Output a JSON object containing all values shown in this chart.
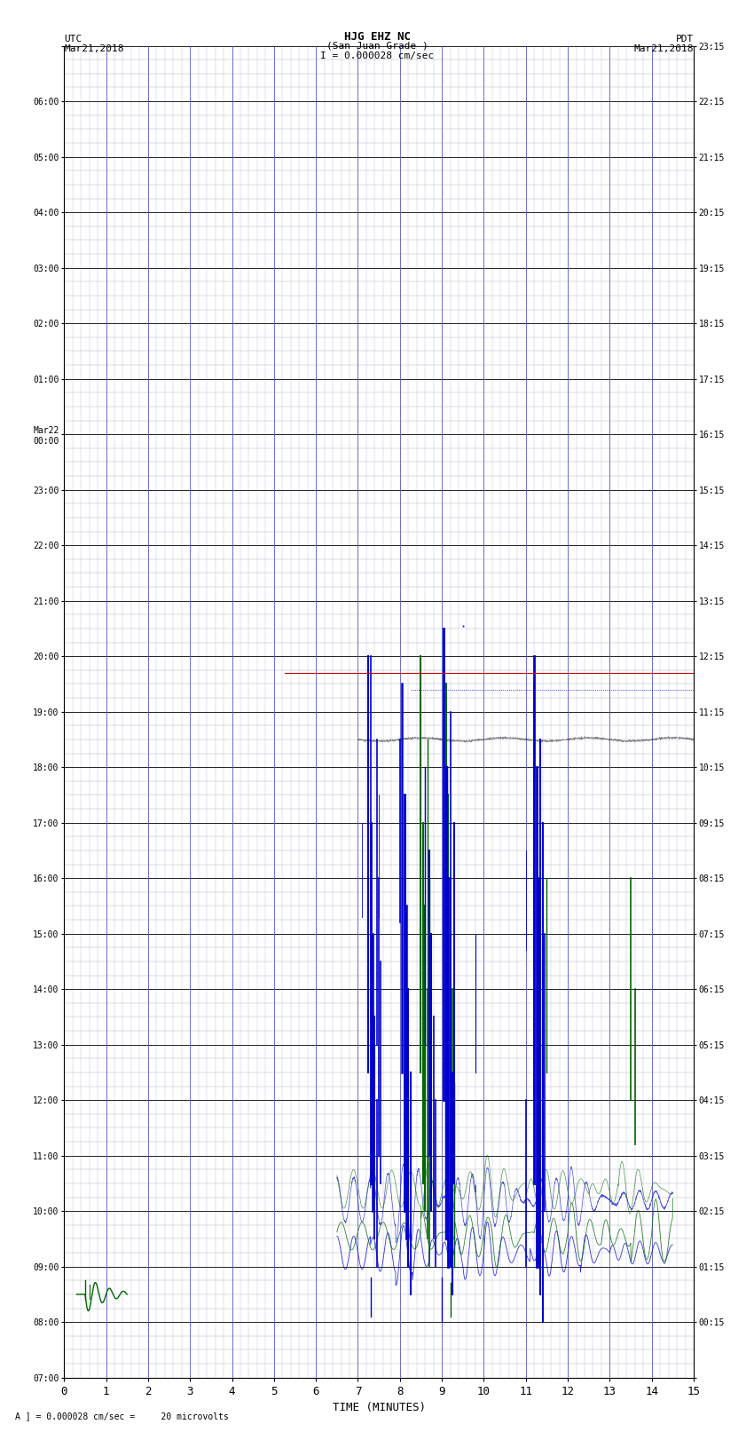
{
  "title_line1": "HJG EHZ NC",
  "title_line2": "(San Juan Grade )",
  "title_line3": "I = 0.000028 cm/sec",
  "left_top_label": "UTC\nMar21,2018",
  "right_top_label": "PDT\nMar21,2018",
  "xlabel": "TIME (MINUTES)",
  "bottom_note": "A ] = 0.000028 cm/sec =     20 microvolts",
  "left_yticks": [
    "07:00",
    "08:00",
    "09:00",
    "10:00",
    "11:00",
    "12:00",
    "13:00",
    "14:00",
    "15:00",
    "16:00",
    "17:00",
    "18:00",
    "19:00",
    "20:00",
    "21:00",
    "22:00",
    "23:00",
    "Mar22\n00:00",
    "01:00",
    "02:00",
    "03:00",
    "04:00",
    "05:00",
    "06:00"
  ],
  "right_yticks": [
    "00:15",
    "01:15",
    "02:15",
    "03:15",
    "04:15",
    "05:15",
    "06:15",
    "07:15",
    "08:15",
    "09:15",
    "10:15",
    "11:15",
    "12:15",
    "13:15",
    "14:15",
    "15:15",
    "16:15",
    "17:15",
    "18:15",
    "19:15",
    "20:15",
    "21:15",
    "22:15",
    "23:15"
  ],
  "xlim": [
    0,
    15
  ],
  "xticks": [
    0,
    1,
    2,
    3,
    4,
    5,
    6,
    7,
    8,
    9,
    10,
    11,
    12,
    13,
    14,
    15
  ],
  "num_rows": 24,
  "bg_color": "#ffffff",
  "major_hgrid_color": "#000000",
  "minor_hgrid_color": "#aaaaaa",
  "major_vgrid_color": "#5555cc",
  "minor_vgrid_color": "#aaaadd",
  "red_line_color": "#cc0000",
  "blue_dotted_color": "#0000cc",
  "signal_blue_color": "#0000cc",
  "signal_green_color": "#006600",
  "signal_black_color": "#000000"
}
